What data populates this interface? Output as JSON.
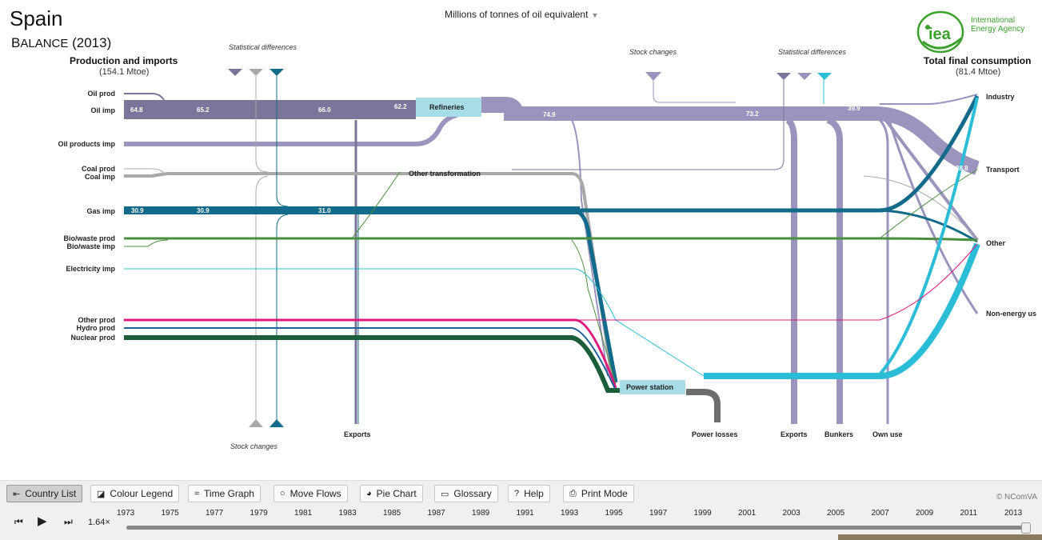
{
  "header": {
    "country": "Spain",
    "balance_prefix": "B",
    "balance_rest": "ALANCE",
    "balance_year": "(2013)",
    "unit": "Millions of tonnes of oil equivalent",
    "logo_text_1": "International",
    "logo_text_2": "Energy Agency",
    "logo_abbr": "iea"
  },
  "sankey": {
    "left_header": "Production and imports",
    "left_total": "(154.1 Mtoe)",
    "right_header": "Total final consumption",
    "right_total": "(81.4 Mtoe)",
    "sources": [
      "Oil prod",
      "Oil imp",
      "Oil products imp",
      "Coal prod",
      "Coal imp",
      "Gas imp",
      "Bio/waste prod",
      "Bio/waste imp",
      "Electricity imp",
      "Other prod",
      "Hydro prod",
      "Nuclear prod"
    ],
    "sinks": [
      "Industry",
      "Transport",
      "Other",
      "Non-energy us"
    ],
    "nodes": {
      "refineries": "Refineries",
      "other_transformation": "Other transformation",
      "power_station": "Power station"
    },
    "bottom_labels": {
      "exports_left": "Exports",
      "power_losses": "Power losses",
      "exports_right": "Exports",
      "bunkers": "Bunkers",
      "own_use": "Own use",
      "stock_changes_bottom": "Stock changes"
    },
    "top_labels": {
      "stat_diff_left": "Statistical differences",
      "stock_changes_top": "Stock  changes",
      "stat_diff_right": "Statistical differences"
    },
    "flow_values": {
      "oil_1": "64.8",
      "oil_2": "65.2",
      "oil_3": "66.0",
      "oil_4": "62.2",
      "oil_5": "74.9",
      "oil_6": "73.2",
      "oil_7": "39.9",
      "oil_8": "28.8",
      "gas_1": "30.9",
      "gas_2": "30.9",
      "gas_3": "31.0"
    },
    "colors": {
      "oil": "#7b7599",
      "oil_products": "#9b94bf",
      "coal": "#a9a9a9",
      "gas": "#136a8a",
      "bio": "#4a8f3f",
      "electricity": "#2bbcd8",
      "other": "#e0197d",
      "hydro": "#1f5f9a",
      "nuclear": "#1b5e3a",
      "losses": "#6d6d6d",
      "refinery_node": "#a8dce6",
      "power_node": "#a8dce6"
    }
  },
  "toolbar": {
    "buttons": [
      "Country List",
      "Colour Legend",
      "Time Graph",
      "Move Flows",
      "Pie Chart",
      "Glossary",
      "Help",
      "Print Mode"
    ],
    "credit": "© NComVA"
  },
  "timeline": {
    "speed": "1.64×",
    "years": [
      "1973",
      "1975",
      "1977",
      "1979",
      "1981",
      "1983",
      "1985",
      "1987",
      "1989",
      "1991",
      "1993",
      "1995",
      "1997",
      "1999",
      "2001",
      "2003",
      "2005",
      "2007",
      "2009",
      "2011",
      "2013"
    ],
    "current_year": "2013",
    "progress": 1.0
  }
}
